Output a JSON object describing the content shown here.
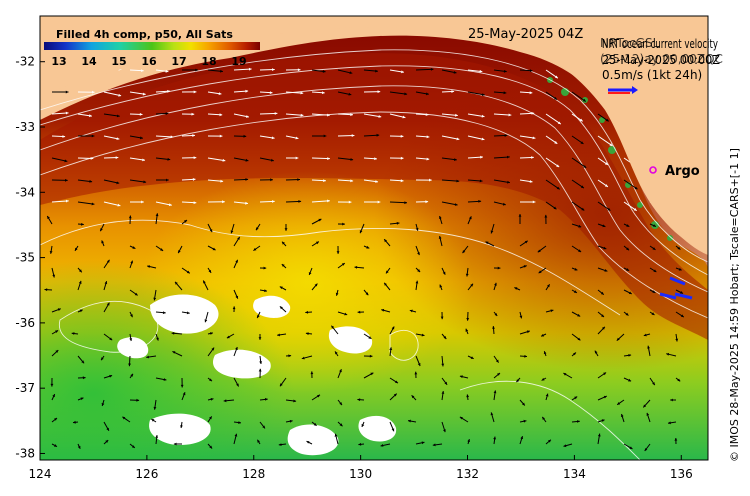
{
  "map": {
    "date_label": "25-May-2025 04Z",
    "velocity_title": "NRT ocean current velocity",
    "velocity_title_overlay": "NRTocGSL",
    "velocity_date": "25-May-2025 00:00Z",
    "velocity_date_overlay": "(25-12)ay 00,00ZQC",
    "scale_label": "0.5m/s (1kt 24h)",
    "argo_label": "Argo",
    "credit": "© IMOS 28-May-2025 14:59 Hobart; Tscale=CARS+[-1 1]"
  },
  "colorbar": {
    "title": "Filled 4h comp, p50, All Sats",
    "ticks": [
      "13",
      "14",
      "15",
      "16",
      "17",
      "18",
      "19"
    ],
    "min": 12.5,
    "max": 19.7
  },
  "axes": {
    "x_ticks": [
      "124",
      "126",
      "128",
      "130",
      "132",
      "134",
      "136"
    ],
    "y_ticks": [
      "-32",
      "-33",
      "-34",
      "-35",
      "-36",
      "-37",
      "-38"
    ],
    "lon_range": [
      124,
      136.5
    ],
    "lat_range": [
      -31.3,
      -38.1
    ]
  },
  "colors": {
    "land": "#f8c795",
    "argo": "#e000e0",
    "coast_vegetation": "#3aa53a"
  }
}
